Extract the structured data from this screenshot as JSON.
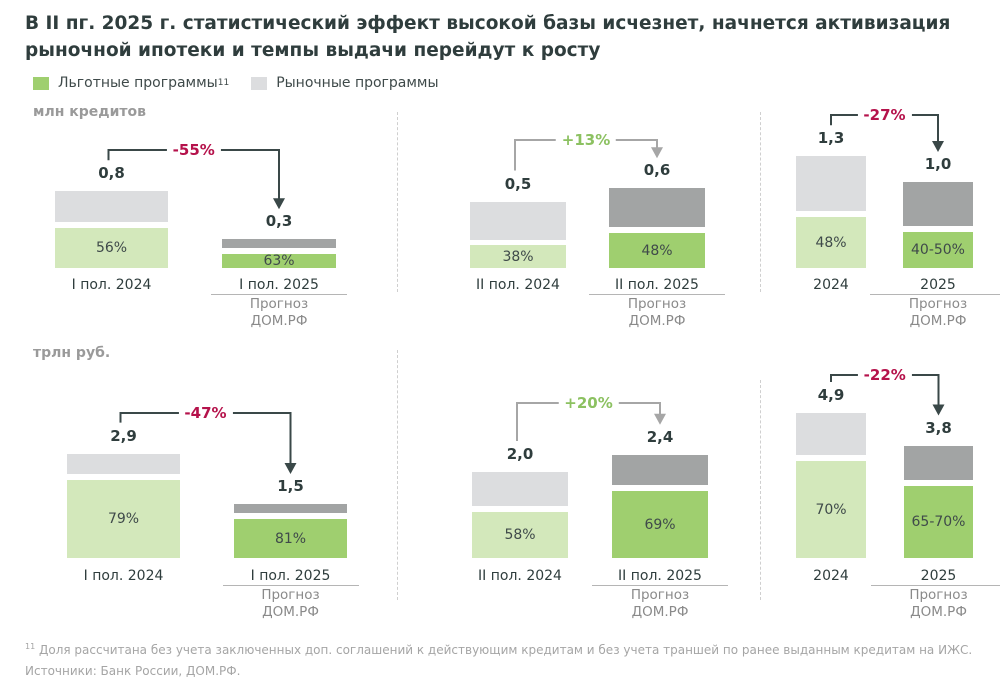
{
  "title": "В II пг. 2025 г. статистический эффект высокой базы исчезнет, начнется активизация рыночной ипотеки и темпы выдачи перейдут к росту",
  "legend": {
    "preferential": "Льготные программы",
    "preferential_sup": "11",
    "market": "Рыночные программы"
  },
  "colors": {
    "pref_actual": "#d3e8bb",
    "pref_forecast": "#9fcf6f",
    "market_actual": "#dcdddf",
    "market_forecast": "#a2a4a4",
    "negative": "#b5124b",
    "positive": "#8cc161",
    "arrow_negative": "#3a4848",
    "arrow_positive": "#a6a6a6"
  },
  "units": {
    "top": "млн кредитов",
    "bottom": "трлн руб."
  },
  "forecast_note": [
    "Прогноз",
    "ДОМ.РФ"
  ],
  "chart_data": [
    {
      "type": "bar",
      "stacked": true,
      "unit": "млн кредитов",
      "change": "-55%",
      "bars": [
        {
          "category": "I пол. 2024",
          "total": "0,8",
          "share": "56%",
          "forecast": false
        },
        {
          "category": "I пол. 2025",
          "total": "0,3",
          "share": "63%",
          "forecast": true
        }
      ]
    },
    {
      "type": "bar",
      "stacked": true,
      "unit": "млн кредитов",
      "change": "+13%",
      "bars": [
        {
          "category": "II пол. 2024",
          "total": "0,5",
          "share": "38%",
          "forecast": false
        },
        {
          "category": "II пол. 2025",
          "total": "0,6",
          "share": "48%",
          "forecast": true
        }
      ]
    },
    {
      "type": "bar",
      "stacked": true,
      "unit": "млн кредитов",
      "change": "-27%",
      "bars": [
        {
          "category": "2024",
          "total": "1,3",
          "share": "48%",
          "forecast": false
        },
        {
          "category": "2025",
          "total": "1,0",
          "share": "40-50%",
          "forecast": true
        }
      ]
    },
    {
      "type": "bar",
      "stacked": true,
      "unit": "трлн руб.",
      "change": "-47%",
      "bars": [
        {
          "category": "I пол. 2024",
          "total": "2,9",
          "share": "79%",
          "forecast": false
        },
        {
          "category": "I пол. 2025",
          "total": "1,5",
          "share": "81%",
          "forecast": true
        }
      ]
    },
    {
      "type": "bar",
      "stacked": true,
      "unit": "трлн руб.",
      "change": "+20%",
      "bars": [
        {
          "category": "II пол. 2024",
          "total": "2,0",
          "share": "58%",
          "forecast": false
        },
        {
          "category": "II пол. 2025",
          "total": "2,4",
          "share": "69%",
          "forecast": true
        }
      ]
    },
    {
      "type": "bar",
      "stacked": true,
      "unit": "трлн руб.",
      "change": "-22%",
      "bars": [
        {
          "category": "2024",
          "total": "4,9",
          "share": "70%",
          "forecast": false
        },
        {
          "category": "2025",
          "total": "3,8",
          "share": "65-70%",
          "forecast": true
        }
      ]
    }
  ],
  "footnote": "Доля рассчитана без учета заключенных доп. соглашений к действующим кредитам и без учета траншей по ранее выданным кредитам на ИЖС.",
  "footnote_sup": "11",
  "sources": "Источники: Банк России, ДОМ.РФ."
}
